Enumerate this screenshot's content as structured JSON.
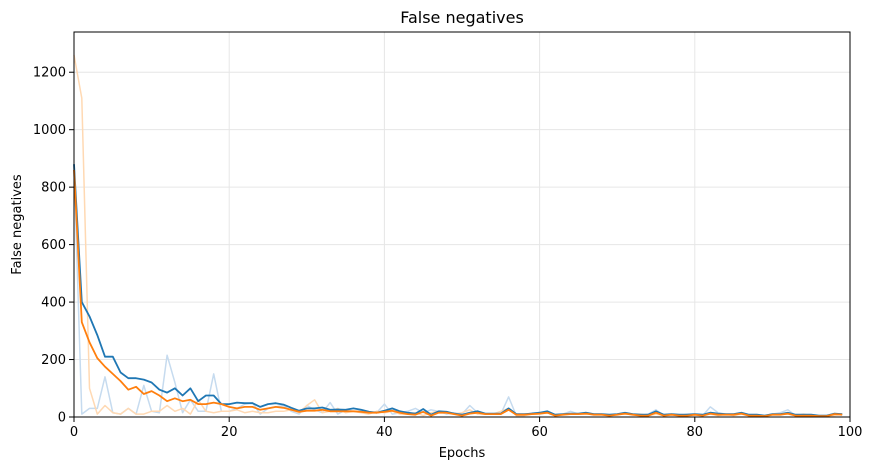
{
  "chart_data": {
    "type": "line",
    "title": "False negatives",
    "xlabel": "Epochs",
    "ylabel": "False negatives",
    "xlim": [
      0,
      100
    ],
    "ylim": [
      0,
      1340
    ],
    "xticks": [
      0,
      20,
      40,
      60,
      80,
      100
    ],
    "yticks": [
      0,
      200,
      400,
      600,
      800,
      1000,
      1200
    ],
    "grid": true,
    "legend": "none",
    "colors": {
      "blue": "#1f77b4",
      "orange": "#ff7f0e",
      "blue_raw": "#c6dbef",
      "orange_raw": "#ffd9b3",
      "grid": "#e6e6e6"
    },
    "series": [
      {
        "kind": "raw",
        "color": "#c6dbef",
        "x": [
          0,
          1,
          2,
          3,
          4,
          5,
          6,
          7,
          8,
          9,
          10,
          11,
          12,
          13,
          14,
          15,
          16,
          17,
          18,
          19,
          20,
          21,
          22,
          23,
          24,
          25,
          26,
          27,
          28,
          29,
          30,
          31,
          32,
          33,
          34,
          35,
          36,
          37,
          38,
          39,
          40,
          41,
          42,
          43,
          44,
          45,
          46,
          47,
          48,
          49,
          50,
          51,
          52,
          53,
          54,
          55,
          56,
          57,
          58,
          59,
          60,
          61,
          62,
          63,
          64,
          65,
          66,
          67,
          68,
          69,
          70,
          71,
          72,
          73,
          74,
          75,
          76,
          77,
          78,
          79,
          80,
          81,
          82,
          83,
          84,
          85,
          86,
          87,
          88,
          89,
          90,
          91,
          92,
          93,
          94,
          95,
          96,
          97,
          98,
          99
        ],
        "values": [
          880,
          10,
          30,
          30,
          140,
          15,
          10,
          30,
          10,
          110,
          20,
          15,
          215,
          120,
          15,
          60,
          20,
          20,
          150,
          20,
          20,
          30,
          45,
          50,
          10,
          30,
          35,
          40,
          20,
          10,
          40,
          25,
          15,
          50,
          10,
          25,
          20,
          20,
          15,
          15,
          45,
          10,
          15,
          20,
          30,
          15,
          25,
          20,
          10,
          15,
          10,
          40,
          15,
          10,
          10,
          10,
          70,
          5,
          5,
          15,
          15,
          15,
          5,
          10,
          20,
          10,
          15,
          10,
          10,
          5,
          10,
          15,
          10,
          5,
          10,
          25,
          5,
          10,
          5,
          10,
          10,
          5,
          35,
          15,
          10,
          10,
          15,
          5,
          5,
          5,
          10,
          15,
          25,
          5,
          5,
          5,
          5,
          5,
          10,
          10
        ]
      },
      {
        "kind": "raw",
        "color": "#ffd9b3",
        "x": [
          0,
          1,
          2,
          3,
          4,
          5,
          6,
          7,
          8,
          9,
          10,
          11,
          12,
          13,
          14,
          15,
          16,
          17,
          18,
          19,
          20,
          21,
          22,
          23,
          24,
          25,
          26,
          27,
          28,
          29,
          30,
          31,
          32,
          33,
          34,
          35,
          36,
          37,
          38,
          39,
          40,
          41,
          42,
          43,
          44,
          45,
          46,
          47,
          48,
          49,
          50,
          51,
          52,
          53,
          54,
          55,
          56,
          57,
          58,
          59,
          60,
          61,
          62,
          63,
          64,
          65,
          66,
          67,
          68,
          69,
          70,
          71,
          72,
          73,
          74,
          75,
          76,
          77,
          78,
          79,
          80,
          81,
          82,
          83,
          84,
          85,
          86,
          87,
          88,
          89,
          90,
          91,
          92,
          93,
          94,
          95,
          96,
          97,
          98,
          99
        ],
        "values": [
          1260,
          1110,
          100,
          10,
          40,
          15,
          10,
          30,
          10,
          10,
          20,
          20,
          40,
          20,
          30,
          10,
          60,
          20,
          15,
          20,
          20,
          25,
          15,
          20,
          15,
          15,
          20,
          20,
          25,
          15,
          40,
          60,
          15,
          20,
          30,
          15,
          20,
          15,
          10,
          20,
          15,
          20,
          10,
          10,
          15,
          5,
          15,
          20,
          15,
          10,
          15,
          25,
          10,
          10,
          10,
          20,
          30,
          5,
          5,
          10,
          10,
          15,
          5,
          10,
          10,
          10,
          10,
          10,
          10,
          5,
          10,
          10,
          10,
          10,
          5,
          10,
          5,
          10,
          5,
          5,
          10,
          5,
          10,
          5,
          10,
          5,
          10,
          5,
          5,
          5,
          10,
          10,
          10,
          5,
          10,
          5,
          5,
          5,
          5,
          10
        ]
      },
      {
        "kind": "smoothed",
        "color": "#1f77b4",
        "x": [
          0,
          1,
          2,
          3,
          4,
          5,
          6,
          7,
          8,
          9,
          10,
          11,
          12,
          13,
          14,
          15,
          16,
          17,
          18,
          19,
          20,
          21,
          22,
          23,
          24,
          25,
          26,
          27,
          28,
          29,
          30,
          31,
          32,
          33,
          34,
          35,
          36,
          37,
          38,
          39,
          40,
          41,
          42,
          43,
          44,
          45,
          46,
          47,
          48,
          49,
          50,
          51,
          52,
          53,
          54,
          55,
          56,
          57,
          58,
          59,
          60,
          61,
          62,
          63,
          64,
          65,
          66,
          67,
          68,
          69,
          70,
          71,
          72,
          73,
          74,
          75,
          76,
          77,
          78,
          79,
          80,
          81,
          82,
          83,
          84,
          85,
          86,
          87,
          88,
          89,
          90,
          91,
          92,
          93,
          94,
          95,
          96,
          97,
          98,
          99
        ],
        "values": [
          880,
          400,
          350,
          285,
          210,
          210,
          155,
          135,
          135,
          130,
          120,
          95,
          85,
          100,
          75,
          100,
          55,
          75,
          75,
          45,
          45,
          50,
          48,
          48,
          35,
          45,
          48,
          43,
          32,
          22,
          30,
          30,
          33,
          25,
          26,
          25,
          30,
          25,
          18,
          15,
          22,
          30,
          20,
          15,
          12,
          28,
          8,
          20,
          18,
          12,
          8,
          15,
          20,
          12,
          12,
          12,
          30,
          10,
          10,
          12,
          15,
          20,
          8,
          10,
          12,
          12,
          15,
          10,
          10,
          8,
          10,
          15,
          10,
          8,
          8,
          20,
          8,
          10,
          8,
          8,
          10,
          8,
          15,
          12,
          10,
          10,
          15,
          8,
          8,
          5,
          10,
          10,
          15,
          8,
          8,
          8,
          5,
          5,
          12,
          10
        ]
      },
      {
        "kind": "smoothed",
        "color": "#ff7f0e",
        "x": [
          0,
          1,
          2,
          3,
          4,
          5,
          6,
          7,
          8,
          9,
          10,
          11,
          12,
          13,
          14,
          15,
          16,
          17,
          18,
          19,
          20,
          21,
          22,
          23,
          24,
          25,
          26,
          27,
          28,
          29,
          30,
          31,
          32,
          33,
          34,
          35,
          36,
          37,
          38,
          39,
          40,
          41,
          42,
          43,
          44,
          45,
          46,
          47,
          48,
          49,
          50,
          51,
          52,
          53,
          54,
          55,
          56,
          57,
          58,
          59,
          60,
          61,
          62,
          63,
          64,
          65,
          66,
          67,
          68,
          69,
          70,
          71,
          72,
          73,
          74,
          75,
          76,
          77,
          78,
          79,
          80,
          81,
          82,
          83,
          84,
          85,
          86,
          87,
          88,
          89,
          90,
          91,
          92,
          93,
          94,
          95,
          96,
          97,
          98,
          99
        ],
        "values": [
          860,
          330,
          260,
          205,
          175,
          150,
          125,
          95,
          105,
          80,
          90,
          75,
          55,
          65,
          55,
          60,
          45,
          45,
          50,
          45,
          35,
          30,
          35,
          35,
          25,
          30,
          35,
          32,
          25,
          18,
          22,
          22,
          25,
          20,
          20,
          20,
          20,
          18,
          15,
          15,
          18,
          22,
          15,
          10,
          8,
          18,
          5,
          15,
          15,
          10,
          5,
          12,
          15,
          10,
          10,
          10,
          25,
          8,
          8,
          10,
          12,
          15,
          5,
          8,
          10,
          10,
          12,
          8,
          8,
          5,
          8,
          12,
          8,
          5,
          5,
          15,
          5,
          8,
          5,
          5,
          8,
          5,
          12,
          8,
          8,
          8,
          12,
          5,
          5,
          3,
          8,
          8,
          12,
          5,
          5,
          5,
          3,
          3,
          10,
          8
        ]
      }
    ]
  }
}
